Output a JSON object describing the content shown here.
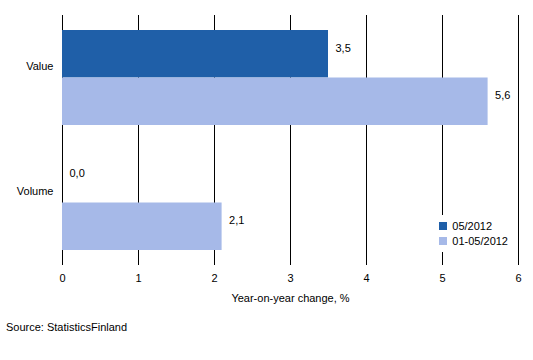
{
  "chart_data": {
    "type": "bar",
    "orientation": "horizontal",
    "categories": [
      "Value",
      "Volume"
    ],
    "series": [
      {
        "name": "05/2012",
        "color": "#1f5fa8",
        "values": [
          3.5,
          0.0
        ],
        "value_labels": [
          "3,5",
          "0,0"
        ]
      },
      {
        "name": "01-05/2012",
        "color": "#a6b9e8",
        "values": [
          5.6,
          2.1
        ],
        "value_labels": [
          "5,6",
          "2,1"
        ]
      }
    ],
    "xlabel": "Year-on-year change, %",
    "xlim": [
      0,
      6
    ],
    "xticks": [
      0,
      1,
      2,
      3,
      4,
      5,
      6
    ],
    "grid": true,
    "legend": "lower right",
    "data_labels": true,
    "caption": "Source: StatisticsFinland"
  }
}
